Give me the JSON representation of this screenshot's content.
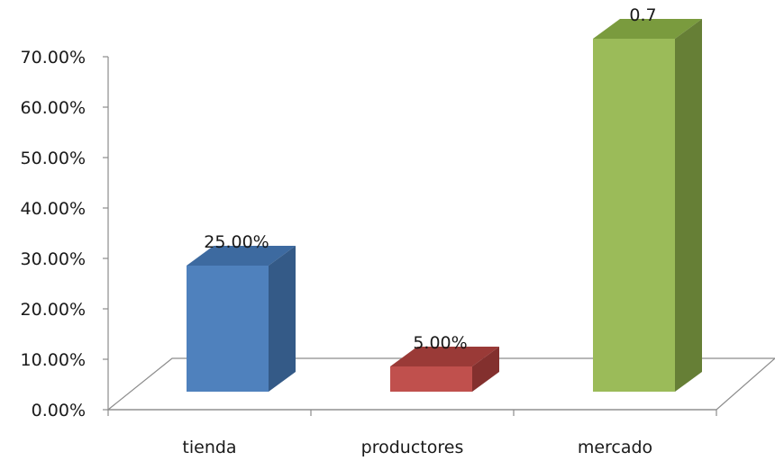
{
  "chart_data": {
    "type": "bar",
    "style": "3d-column",
    "categories": [
      "tienda",
      "productores",
      "mercado"
    ],
    "values": [
      0.25,
      0.05,
      0.7
    ],
    "data_labels": [
      "25.00%",
      "5.00%",
      "0.7"
    ],
    "y_ticks": [
      "0.00%",
      "10.00%",
      "20.00%",
      "30.00%",
      "40.00%",
      "50.00%",
      "60.00%",
      "70.00%"
    ],
    "ylim": [
      0,
      0.7
    ],
    "grid": false,
    "legend": "none",
    "colors": [
      {
        "front": "#4f81bd",
        "top": "#3d6aa0",
        "side": "#345a87"
      },
      {
        "front": "#c0504d",
        "top": "#9a3a37",
        "side": "#83302e"
      },
      {
        "front": "#9bbb59",
        "top": "#7a9b3e",
        "side": "#667f36"
      }
    ]
  }
}
